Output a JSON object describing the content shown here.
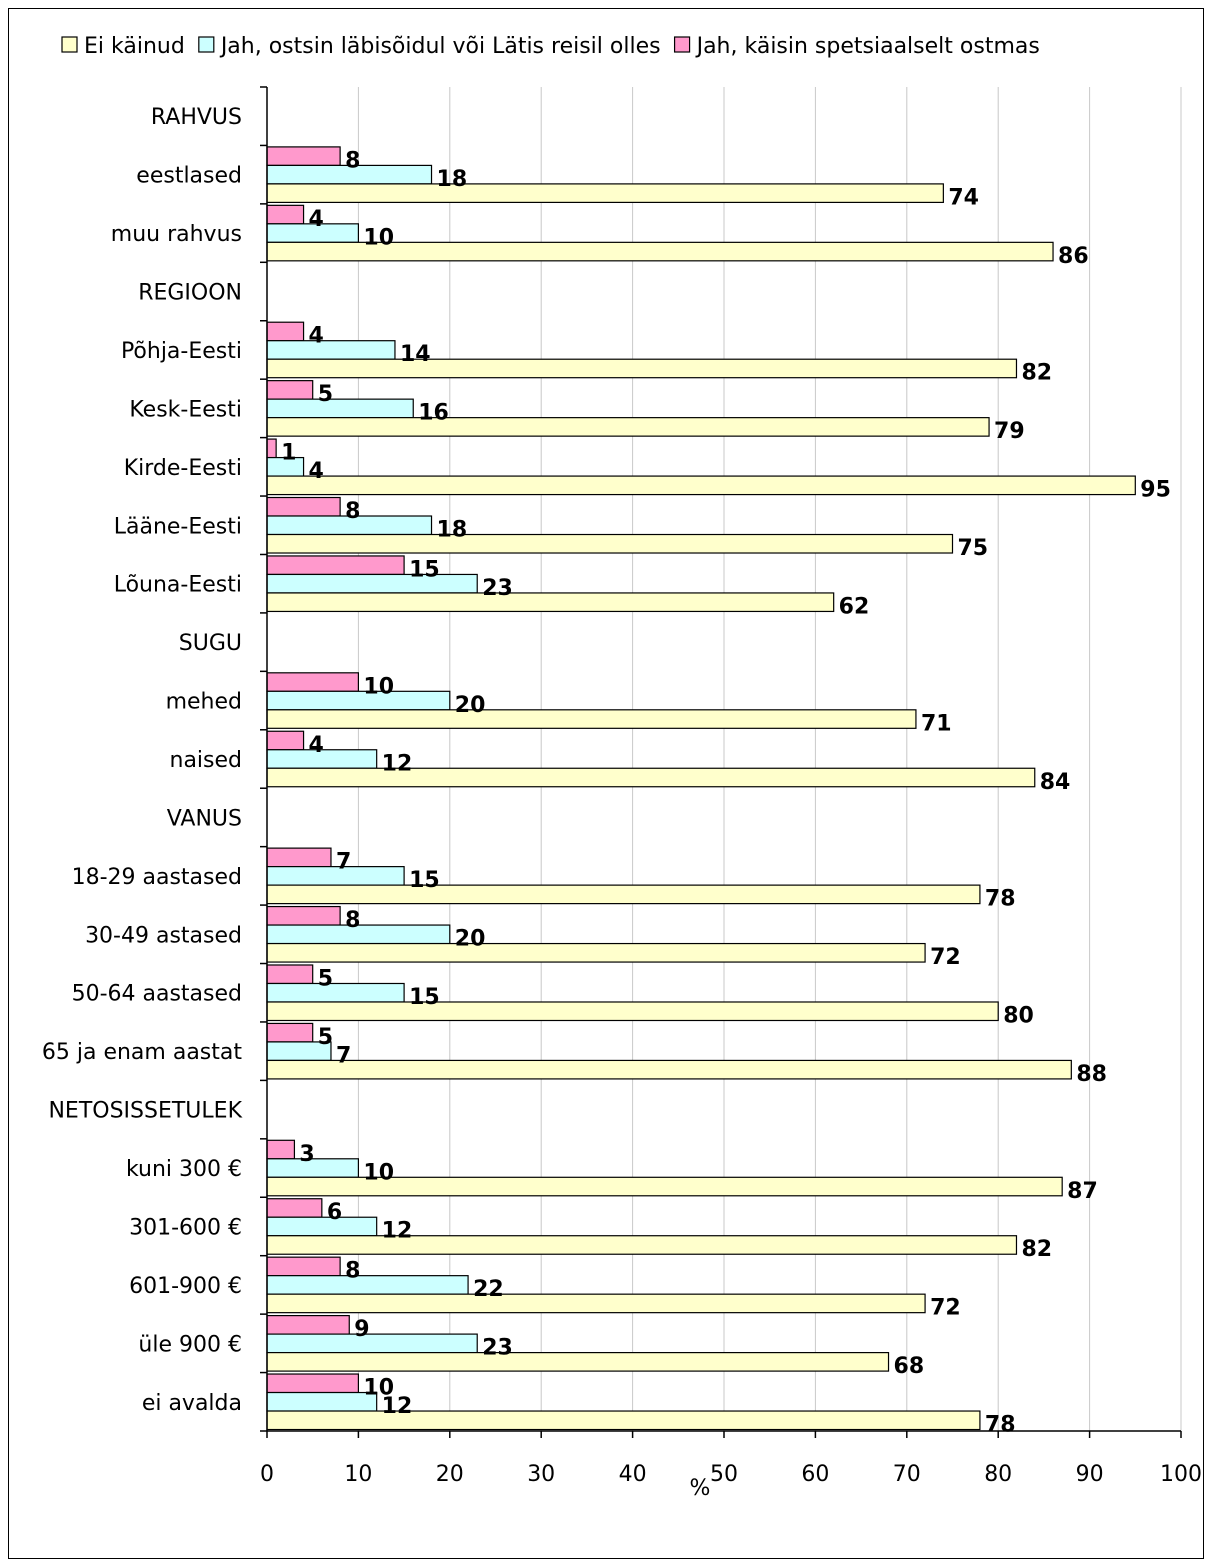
{
  "chart_data": {
    "type": "bar",
    "orientation": "horizontal",
    "xlabel": "%",
    "xlim": [
      0,
      100
    ],
    "xticks": [
      0,
      10,
      20,
      30,
      40,
      50,
      60,
      70,
      80,
      90,
      100
    ],
    "grid": true,
    "legend_position": "top",
    "categories": [
      "RAHVUS",
      "eestlased",
      "muu rahvus",
      "REGIOON",
      "Põhja-Eesti",
      "Kesk-Eesti",
      "Kirde-Eesti",
      "Lääne-Eesti",
      "Lõuna-Eesti",
      "SUGU",
      "mehed",
      "naised",
      "VANUS",
      "18-29 aastased",
      "30-49 astased",
      "50-64 aastased",
      "65 ja enam aastat",
      "NETOSISSETULEK",
      "kuni 300 €",
      "301-600 €",
      "601-900 €",
      "üle 900 €",
      "ei avalda"
    ],
    "series": [
      {
        "name": "Ei käinud",
        "color": "#FFFFCC",
        "values": [
          null,
          74,
          86,
          null,
          82,
          79,
          95,
          75,
          62,
          null,
          71,
          84,
          null,
          78,
          72,
          80,
          88,
          null,
          87,
          82,
          72,
          68,
          78
        ]
      },
      {
        "name": "Jah, ostsin läbisõidul või Lätis reisil olles",
        "color": "#CCFFFF",
        "values": [
          null,
          18,
          10,
          null,
          14,
          16,
          4,
          18,
          23,
          null,
          20,
          12,
          null,
          15,
          20,
          15,
          7,
          null,
          10,
          12,
          22,
          23,
          12
        ]
      },
      {
        "name": "Jah, käisin spetsiaalselt ostmas",
        "color": "#FF99CC",
        "values": [
          null,
          8,
          4,
          null,
          4,
          5,
          1,
          8,
          15,
          null,
          10,
          4,
          null,
          7,
          8,
          5,
          5,
          null,
          3,
          6,
          8,
          9,
          10
        ]
      }
    ]
  }
}
